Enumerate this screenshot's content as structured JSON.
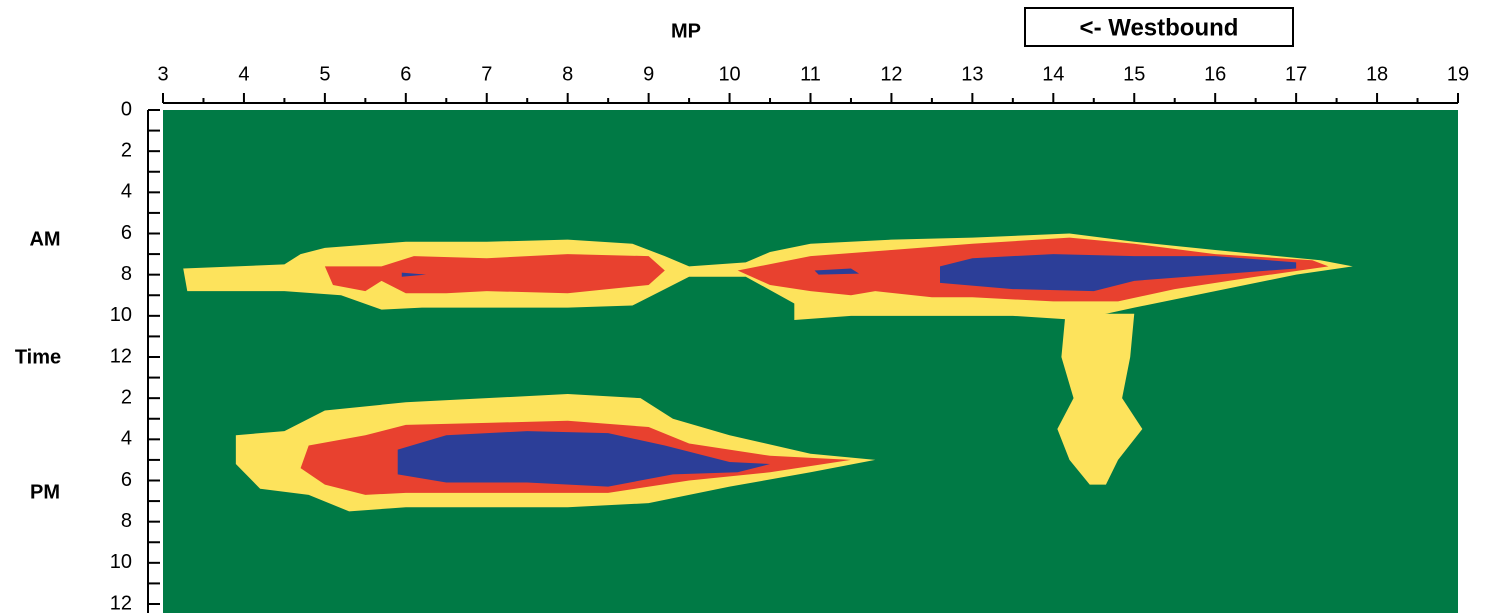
{
  "chart_data": {
    "type": "contour",
    "title": "MP",
    "annotation": "<- Westbound",
    "y_labels": [
      "AM",
      "Time",
      "PM"
    ],
    "background": "#007a45",
    "xlim": [
      3,
      19
    ],
    "xticks": [
      3,
      4,
      5,
      6,
      7,
      8,
      9,
      10,
      11,
      12,
      13,
      14,
      15,
      16,
      17,
      18,
      19
    ],
    "ylim": [
      0,
      24
    ],
    "yticks": [
      0,
      2,
      4,
      6,
      8,
      10,
      12,
      {
        "value": 14,
        "label": "2"
      },
      {
        "value": 16,
        "label": "4"
      },
      {
        "value": 18,
        "label": "6"
      },
      {
        "value": 20,
        "label": "8"
      },
      {
        "value": 22,
        "label": "10"
      },
      {
        "value": 24,
        "label": "12"
      }
    ],
    "regions": [
      {
        "color": "#fde35c",
        "x": [
          3.25,
          4.5,
          4.7,
          5.0,
          6.0,
          7.0,
          8.0,
          8.8,
          9.2,
          9.5,
          10.2,
          10.5,
          11,
          12,
          13,
          14.2,
          15,
          16,
          17.3,
          17.7,
          17,
          16,
          15,
          14.3,
          13.5,
          12.5,
          11.5,
          10.8,
          10.8,
          10.2,
          9.5,
          9.2,
          8.8,
          8,
          7,
          6.2,
          5.7,
          5.2,
          4.5,
          3.3
        ],
        "y": [
          7.7,
          7.5,
          7.0,
          6.7,
          6.4,
          6.4,
          6.3,
          6.5,
          7.1,
          7.6,
          7.4,
          6.9,
          6.5,
          6.3,
          6.2,
          6.0,
          6.4,
          6.8,
          7.3,
          7.6,
          8.0,
          8.8,
          9.6,
          10.2,
          10.0,
          10.0,
          10.0,
          10.2,
          9.4,
          8.1,
          8.1,
          8.7,
          9.5,
          9.6,
          9.6,
          9.6,
          9.7,
          9.0,
          8.8,
          8.8
        ]
      },
      {
        "color": "#fde35c",
        "x": [
          14.15,
          15.0,
          14.95,
          14.85,
          15.1,
          14.8,
          14.65,
          14.45,
          14.2,
          14.05,
          14.25,
          14.1
        ],
        "y": [
          9.9,
          9.9,
          12,
          14,
          15.5,
          17.0,
          18.2,
          18.2,
          17.0,
          15.5,
          14,
          12
        ]
      },
      {
        "color": "#fde35c",
        "x": [
          3.9,
          4.5,
          5,
          6,
          7,
          8,
          8.9,
          9.3,
          10,
          11,
          11.8,
          11,
          10,
          9,
          8,
          7,
          6,
          5.3,
          4.8,
          4.2,
          3.9
        ],
        "y": [
          15.8,
          15.6,
          14.6,
          14.2,
          14.0,
          13.8,
          14.0,
          15.0,
          15.8,
          16.7,
          17.0,
          17.6,
          18.3,
          19.1,
          19.3,
          19.3,
          19.3,
          19.5,
          18.7,
          18.4,
          17.2
        ]
      },
      {
        "color": "#e8412f",
        "x": [
          5,
          5.7,
          6.1,
          7,
          8,
          9,
          9.2,
          9.0,
          8,
          7,
          6.5,
          6,
          5.7,
          5.5,
          5.1
        ],
        "y": [
          7.6,
          7.6,
          7.1,
          7.2,
          7.0,
          7.1,
          7.8,
          8.5,
          8.9,
          8.8,
          8.9,
          8.9,
          8.3,
          8.8,
          8.5
        ]
      },
      {
        "color": "#e8412f",
        "x": [
          10.1,
          11,
          12,
          13,
          14.2,
          15,
          16,
          17.2,
          17.4,
          16.5,
          15.5,
          14.8,
          14,
          13,
          12.5,
          11.8,
          11.5,
          11,
          10.5
        ],
        "y": [
          7.8,
          7.1,
          6.8,
          6.5,
          6.2,
          6.5,
          7.0,
          7.3,
          7.6,
          8.1,
          8.7,
          9.3,
          9.3,
          9.1,
          9.1,
          8.8,
          9.0,
          8.8,
          8.5
        ]
      },
      {
        "color": "#e8412f",
        "x": [
          4.8,
          5.5,
          6,
          7,
          8,
          9.0,
          9.5,
          10.5,
          11.5,
          10.5,
          9.5,
          8.5,
          7,
          6,
          5.5,
          5.0,
          4.7
        ],
        "y": [
          16.3,
          15.8,
          15.3,
          15.2,
          15.1,
          15.4,
          16.2,
          16.8,
          17.0,
          17.6,
          18.0,
          18.6,
          18.6,
          18.6,
          18.7,
          18.2,
          17.4
        ]
      },
      {
        "color": "#2c3e98",
        "x": [
          12.6,
          13,
          14,
          15,
          16,
          17,
          17.0,
          16,
          15,
          14.5,
          13.5,
          12.6
        ],
        "y": [
          7.6,
          7.2,
          7.0,
          7.1,
          7.1,
          7.4,
          7.7,
          8.0,
          8.3,
          8.8,
          8.7,
          8.4
        ]
      },
      {
        "color": "#2c3e98",
        "x": [
          11.05,
          11.5,
          11.6,
          11.1
        ],
        "y": [
          7.8,
          7.7,
          7.95,
          8.0
        ]
      },
      {
        "color": "#2c3e98",
        "x": [
          5.95,
          6.25,
          5.95
        ],
        "y": [
          7.9,
          8.0,
          8.1
        ]
      },
      {
        "color": "#2c3e98",
        "x": [
          5.9,
          6.5,
          7.5,
          8.5,
          9.2,
          10,
          10.5,
          10.1,
          9.3,
          8.5,
          7.5,
          6.5,
          5.9
        ],
        "y": [
          16.5,
          15.8,
          15.6,
          15.7,
          16.3,
          17.1,
          17.2,
          17.6,
          17.7,
          18.3,
          18.1,
          18.1,
          17.7
        ]
      }
    ]
  }
}
